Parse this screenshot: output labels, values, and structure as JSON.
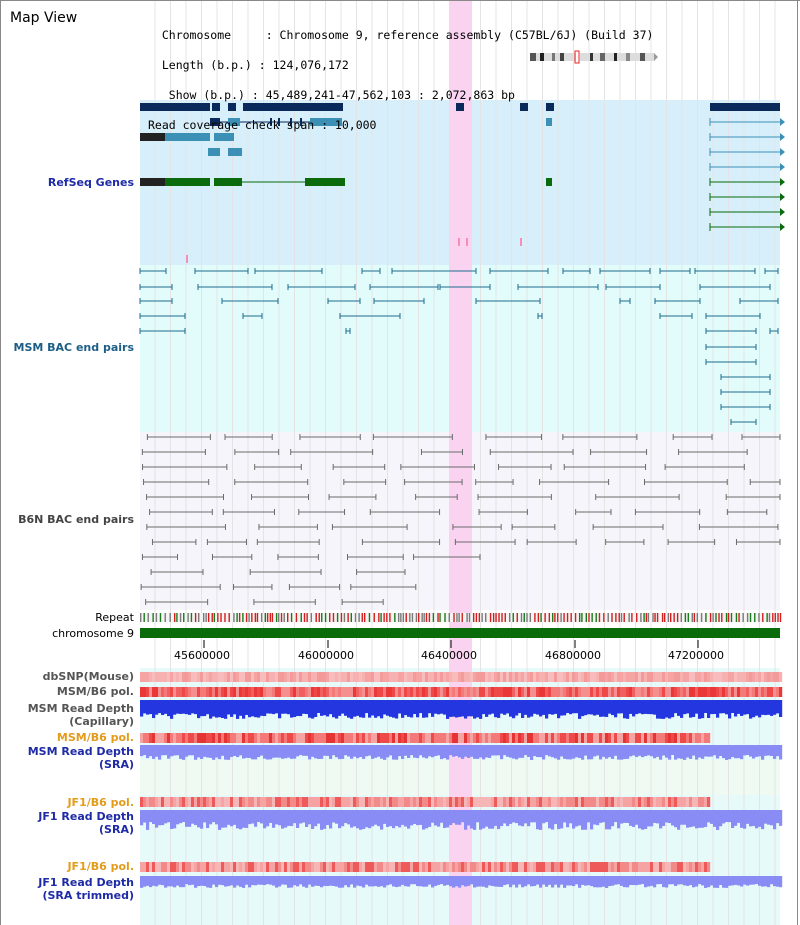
{
  "header": {
    "title": "Map View",
    "info_lines": [
      "  Chromosome     : Chromosome 9, reference assembly (C57BL/6J) (Build 37)",
      "  Length (b.p.) : 124,076,172",
      "   Show (b.p.) : 45,489,241-47,562,103 : 2,072,863 bp",
      "Read coverage check span : 10,000"
    ]
  },
  "tracks": {
    "refseq": "RefSeq Genes",
    "msm_bac": "MSM BAC end pairs",
    "b6n_bac": "B6N BAC end pairs",
    "repeat": "Repeat",
    "chromosome": "chromosome 9",
    "dbsnp": "dbSNP(Mouse)",
    "msm_b6_pol": "MSM/B6 pol.",
    "msm_depth_cap_1": "MSM Read Depth",
    "msm_depth_cap_2": "(Capillary)",
    "msm_b6_pol_2": "MSM/B6 pol.",
    "msm_depth_sra_1": "MSM Read Depth",
    "msm_depth_sra_2": "(SRA)",
    "jf1_b6_pol": "JF1/B6 pol.",
    "jf1_depth_sra_1": "JF1 Read Depth",
    "jf1_depth_sra_2": "(SRA)",
    "jf1_b6_pol_2": "JF1/B6 pol.",
    "jf1_depth_trim_1": "JF1 Read Depth",
    "jf1_depth_trim_2": "(SRA trimmed)"
  },
  "axis": {
    "ticks": [
      "45600000",
      "46000000",
      "46400000",
      "46800000",
      "47200000"
    ]
  },
  "colors": {
    "refseq_bg": "#d6effa",
    "msm_bg": "#e2fbfb",
    "b6n_bg": "#f5f5fb",
    "highlight": "#f9d3f0",
    "chromosome": "#0a6b0a",
    "gene_dark": "#0a2a5c",
    "gene_mid": "#3c8fb5",
    "gene_green": "#0b6a0b",
    "msm_line": "#1d6d8c",
    "b6n_line": "#6b6b6b",
    "depth_blue": "#2436e0",
    "depth_light": "#8a8cf5",
    "pol_red": "#ef3a3a",
    "pol_pink": "#f7b6b6"
  }
}
